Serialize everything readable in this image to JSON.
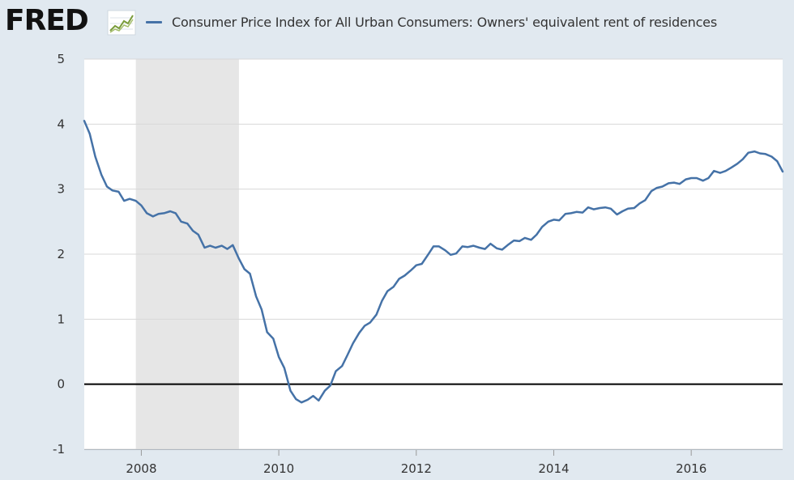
{
  "header": {
    "logo_text": "FRED",
    "logo_icon": "fred-line-graph-icon",
    "legend_label": "Consumer Price Index for All Urban Consumers: Owners' equivalent rent of residences"
  },
  "colors": {
    "background": "#e1e9f0",
    "plot_background": "#ffffff",
    "line": "#4572a7",
    "recession_band": "#e6e6e6",
    "gridline": "#d8d8d8",
    "zero_line": "#000000"
  },
  "chart_data": {
    "type": "line",
    "title": "",
    "xlabel": "",
    "ylabel": "",
    "ylim": [
      -1,
      5
    ],
    "xlim": [
      2007.17,
      2017.33
    ],
    "yticks": [
      -1,
      0,
      1,
      2,
      3,
      4,
      5
    ],
    "xticks": [
      2008,
      2010,
      2012,
      2014,
      2016
    ],
    "grid": "horizontal",
    "reference_line_y": 0,
    "recession_shading": [
      [
        2007.92,
        2009.42
      ]
    ],
    "series": [
      {
        "name": "Consumer Price Index for All Urban Consumers: Owners' equivalent rent of residences",
        "x": [
          2007.17,
          2007.25,
          2007.33,
          2007.42,
          2007.5,
          2007.58,
          2007.67,
          2007.75,
          2007.83,
          2007.92,
          2008.0,
          2008.08,
          2008.17,
          2008.25,
          2008.33,
          2008.42,
          2008.5,
          2008.58,
          2008.67,
          2008.75,
          2008.83,
          2008.92,
          2009.0,
          2009.08,
          2009.17,
          2009.25,
          2009.33,
          2009.42,
          2009.5,
          2009.58,
          2009.67,
          2009.75,
          2009.83,
          2009.92,
          2010.0,
          2010.08,
          2010.17,
          2010.25,
          2010.33,
          2010.42,
          2010.5,
          2010.58,
          2010.67,
          2010.75,
          2010.83,
          2010.92,
          2011.0,
          2011.08,
          2011.17,
          2011.25,
          2011.33,
          2011.42,
          2011.5,
          2011.58,
          2011.67,
          2011.75,
          2011.83,
          2011.92,
          2012.0,
          2012.08,
          2012.17,
          2012.25,
          2012.33,
          2012.42,
          2012.5,
          2012.58,
          2012.67,
          2012.75,
          2012.83,
          2012.92,
          2013.0,
          2013.08,
          2013.17,
          2013.25,
          2013.33,
          2013.42,
          2013.5,
          2013.58,
          2013.67,
          2013.75,
          2013.83,
          2013.92,
          2014.0,
          2014.08,
          2014.17,
          2014.25,
          2014.33,
          2014.42,
          2014.5,
          2014.58,
          2014.67,
          2014.75,
          2014.83,
          2014.92,
          2015.0,
          2015.08,
          2015.17,
          2015.25,
          2015.33,
          2015.42,
          2015.5,
          2015.58,
          2015.67,
          2015.75,
          2015.83,
          2015.92,
          2016.0,
          2016.08,
          2016.17,
          2016.25,
          2016.33,
          2016.42,
          2016.5,
          2016.58,
          2016.67,
          2016.75,
          2016.83,
          2016.92,
          2017.0,
          2017.08,
          2017.17,
          2017.25,
          2017.33
        ],
        "values": [
          4.05,
          3.85,
          3.5,
          3.22,
          3.04,
          2.98,
          2.96,
          2.82,
          2.85,
          2.82,
          2.75,
          2.63,
          2.58,
          2.62,
          2.63,
          2.66,
          2.63,
          2.5,
          2.47,
          2.36,
          2.3,
          2.1,
          2.13,
          2.1,
          2.13,
          2.08,
          2.14,
          1.93,
          1.77,
          1.7,
          1.35,
          1.15,
          0.8,
          0.7,
          0.42,
          0.25,
          -0.1,
          -0.23,
          -0.28,
          -0.24,
          -0.18,
          -0.25,
          -0.1,
          -0.02,
          0.2,
          0.28,
          0.45,
          0.63,
          0.79,
          0.9,
          0.95,
          1.07,
          1.28,
          1.43,
          1.5,
          1.62,
          1.67,
          1.75,
          1.83,
          1.85,
          1.99,
          2.12,
          2.12,
          2.06,
          1.99,
          2.01,
          2.12,
          2.11,
          2.13,
          2.1,
          2.08,
          2.16,
          2.09,
          2.07,
          2.14,
          2.21,
          2.2,
          2.25,
          2.22,
          2.3,
          2.42,
          2.5,
          2.53,
          2.52,
          2.62,
          2.63,
          2.65,
          2.64,
          2.72,
          2.69,
          2.71,
          2.72,
          2.7,
          2.61,
          2.66,
          2.7,
          2.71,
          2.78,
          2.83,
          2.97,
          3.02,
          3.04,
          3.09,
          3.1,
          3.08,
          3.15,
          3.17,
          3.17,
          3.13,
          3.17,
          3.28,
          3.25,
          3.28,
          3.33,
          3.39,
          3.46,
          3.56,
          3.58,
          3.55,
          3.54,
          3.5,
          3.43,
          3.27
        ]
      }
    ]
  }
}
